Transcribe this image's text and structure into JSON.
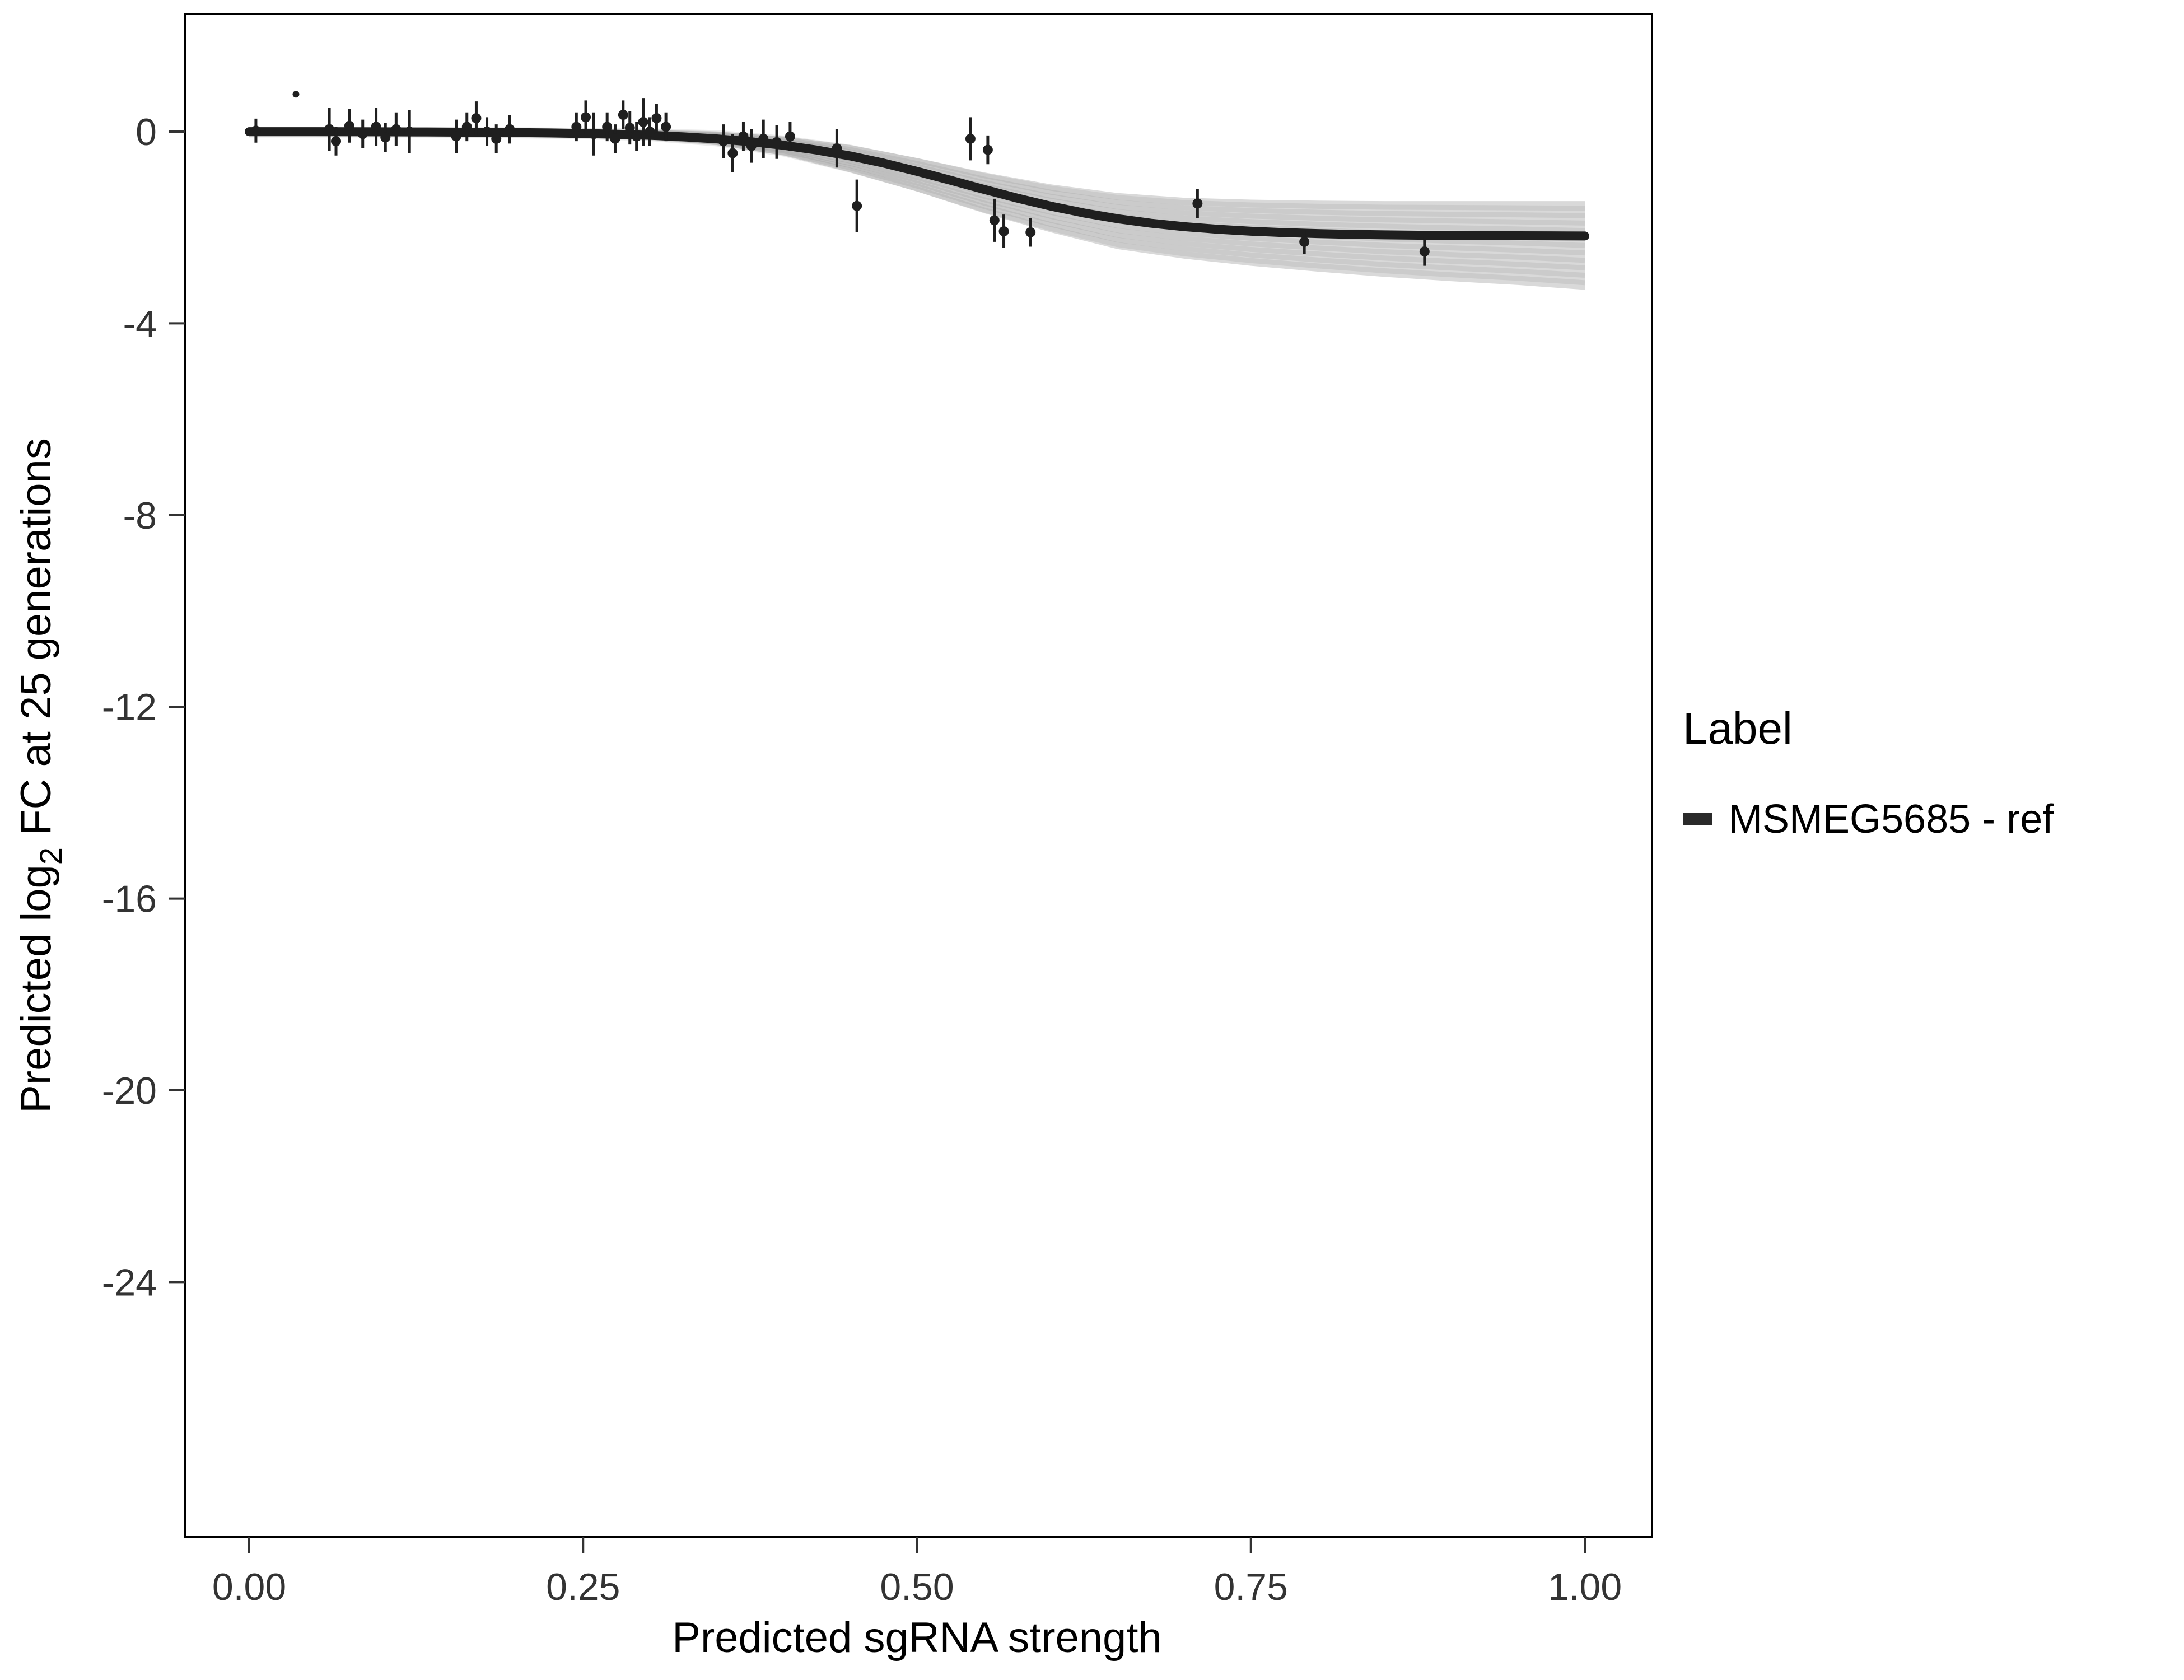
{
  "chart_data": {
    "type": "scatter",
    "title": "",
    "xlabel": "Predicted sgRNA strength",
    "ylabel_parts": [
      "Predicted log",
      "2",
      " FC at 25 generations"
    ],
    "xlim": [
      0,
      1
    ],
    "ylim": [
      -29,
      2.4
    ],
    "grid": false,
    "legend": {
      "title": "Label",
      "position": "right",
      "items": [
        {
          "label": "MSMEG5685 - ref",
          "color": "#2a2a2a"
        }
      ]
    },
    "x_ticks": [
      {
        "v": 0.0,
        "label": "0.00"
      },
      {
        "v": 0.25,
        "label": "0.25"
      },
      {
        "v": 0.5,
        "label": "0.50"
      },
      {
        "v": 0.75,
        "label": "0.75"
      },
      {
        "v": 1.0,
        "label": "1.00"
      }
    ],
    "y_ticks": [
      {
        "v": 0,
        "label": "0"
      },
      {
        "v": -4,
        "label": "-4"
      },
      {
        "v": -8,
        "label": "-8"
      },
      {
        "v": -12,
        "label": "-12"
      },
      {
        "v": -16,
        "label": "-16"
      },
      {
        "v": -20,
        "label": "-20"
      },
      {
        "v": -24,
        "label": "-24"
      }
    ],
    "curve": {
      "x": [
        0,
        0.025,
        0.05,
        0.075,
        0.1,
        0.125,
        0.15,
        0.175,
        0.2,
        0.225,
        0.25,
        0.275,
        0.3,
        0.325,
        0.35,
        0.375,
        0.4,
        0.425,
        0.45,
        0.475,
        0.5,
        0.525,
        0.55,
        0.575,
        0.6,
        0.625,
        0.65,
        0.675,
        0.7,
        0.725,
        0.75,
        0.775,
        0.8,
        0.825,
        0.85,
        0.875,
        0.9,
        0.925,
        0.95,
        0.975,
        1.0
      ],
      "y": [
        -0.001,
        -0.002,
        -0.002,
        -0.003,
        -0.005,
        -0.007,
        -0.01,
        -0.014,
        -0.02,
        -0.028,
        -0.04,
        -0.056,
        -0.078,
        -0.11,
        -0.152,
        -0.21,
        -0.286,
        -0.385,
        -0.508,
        -0.657,
        -0.829,
        -1.014,
        -1.204,
        -1.387,
        -1.554,
        -1.698,
        -1.817,
        -1.911,
        -1.983,
        -2.037,
        -2.078,
        -2.107,
        -2.128,
        -2.143,
        -2.154,
        -2.161,
        -2.167,
        -2.171,
        -2.173,
        -2.175,
        -2.177
      ]
    },
    "ribbon": {
      "x": [
        0,
        0.05,
        0.1,
        0.15,
        0.2,
        0.25,
        0.3,
        0.35,
        0.4,
        0.45,
        0.5,
        0.55,
        0.6,
        0.65,
        0.7,
        0.75,
        0.8,
        0.85,
        0.9,
        0.95,
        1.0
      ],
      "upper": [
        0.05,
        0.05,
        0.05,
        0.05,
        0.05,
        0.04,
        0.03,
        0.0,
        -0.1,
        -0.28,
        -0.55,
        -0.85,
        -1.1,
        -1.28,
        -1.38,
        -1.42,
        -1.44,
        -1.45,
        -1.45,
        -1.45,
        -1.45
      ],
      "lower": [
        -0.08,
        -0.08,
        -0.08,
        -0.09,
        -0.1,
        -0.12,
        -0.16,
        -0.28,
        -0.5,
        -0.85,
        -1.25,
        -1.7,
        -2.1,
        -2.45,
        -2.65,
        -2.8,
        -2.92,
        -3.03,
        -3.12,
        -3.2,
        -3.3
      ]
    },
    "points": [
      {
        "x": 0.005,
        "y": 0.02,
        "e": 0.25
      },
      {
        "x": 0.035,
        "y": 0.78,
        "e": 0
      },
      {
        "x": 0.06,
        "y": 0.05,
        "e": 0.45
      },
      {
        "x": 0.065,
        "y": -0.2,
        "e": 0.3
      },
      {
        "x": 0.075,
        "y": 0.12,
        "e": 0.35
      },
      {
        "x": 0.085,
        "y": -0.05,
        "e": 0.3
      },
      {
        "x": 0.095,
        "y": 0.1,
        "e": 0.4
      },
      {
        "x": 0.102,
        "y": -0.12,
        "e": 0.3
      },
      {
        "x": 0.11,
        "y": 0.05,
        "e": 0.35
      },
      {
        "x": 0.12,
        "y": 0.0,
        "e": 0.45
      },
      {
        "x": 0.155,
        "y": -0.1,
        "e": 0.35
      },
      {
        "x": 0.163,
        "y": 0.1,
        "e": 0.3
      },
      {
        "x": 0.17,
        "y": 0.28,
        "e": 0.35
      },
      {
        "x": 0.178,
        "y": 0.0,
        "e": 0.3
      },
      {
        "x": 0.185,
        "y": -0.15,
        "e": 0.3
      },
      {
        "x": 0.195,
        "y": 0.05,
        "e": 0.3
      },
      {
        "x": 0.245,
        "y": 0.1,
        "e": 0.3
      },
      {
        "x": 0.252,
        "y": 0.3,
        "e": 0.35
      },
      {
        "x": 0.258,
        "y": -0.05,
        "e": 0.45
      },
      {
        "x": 0.268,
        "y": 0.1,
        "e": 0.3
      },
      {
        "x": 0.274,
        "y": -0.15,
        "e": 0.3
      },
      {
        "x": 0.28,
        "y": 0.35,
        "e": 0.3
      },
      {
        "x": 0.285,
        "y": 0.08,
        "e": 0.35
      },
      {
        "x": 0.29,
        "y": -0.1,
        "e": 0.3
      },
      {
        "x": 0.295,
        "y": 0.2,
        "e": 0.5
      },
      {
        "x": 0.3,
        "y": 0.0,
        "e": 0.3
      },
      {
        "x": 0.305,
        "y": 0.28,
        "e": 0.3
      },
      {
        "x": 0.312,
        "y": 0.1,
        "e": 0.3
      },
      {
        "x": 0.355,
        "y": -0.2,
        "e": 0.35
      },
      {
        "x": 0.362,
        "y": -0.45,
        "e": 0.4
      },
      {
        "x": 0.37,
        "y": -0.1,
        "e": 0.3
      },
      {
        "x": 0.376,
        "y": -0.3,
        "e": 0.35
      },
      {
        "x": 0.385,
        "y": -0.15,
        "e": 0.4
      },
      {
        "x": 0.395,
        "y": -0.22,
        "e": 0.35
      },
      {
        "x": 0.405,
        "y": -0.1,
        "e": 0.3
      },
      {
        "x": 0.44,
        "y": -0.35,
        "e": 0.4
      },
      {
        "x": 0.455,
        "y": -1.55,
        "e": 0.55
      },
      {
        "x": 0.54,
        "y": -0.15,
        "e": 0.45
      },
      {
        "x": 0.553,
        "y": -0.38,
        "e": 0.3
      },
      {
        "x": 0.558,
        "y": -1.85,
        "e": 0.45
      },
      {
        "x": 0.565,
        "y": -2.08,
        "e": 0.35
      },
      {
        "x": 0.585,
        "y": -2.1,
        "e": 0.3
      },
      {
        "x": 0.71,
        "y": -1.5,
        "e": 0.3
      },
      {
        "x": 0.79,
        "y": -2.3,
        "e": 0.25
      },
      {
        "x": 0.88,
        "y": -2.5,
        "e": 0.3
      }
    ],
    "colors": {
      "line": "#1f1f1f",
      "point": "#1f1f1f",
      "ribbon": "#6e6e6e",
      "axis": "#000000",
      "tick_text": "#333333"
    }
  }
}
